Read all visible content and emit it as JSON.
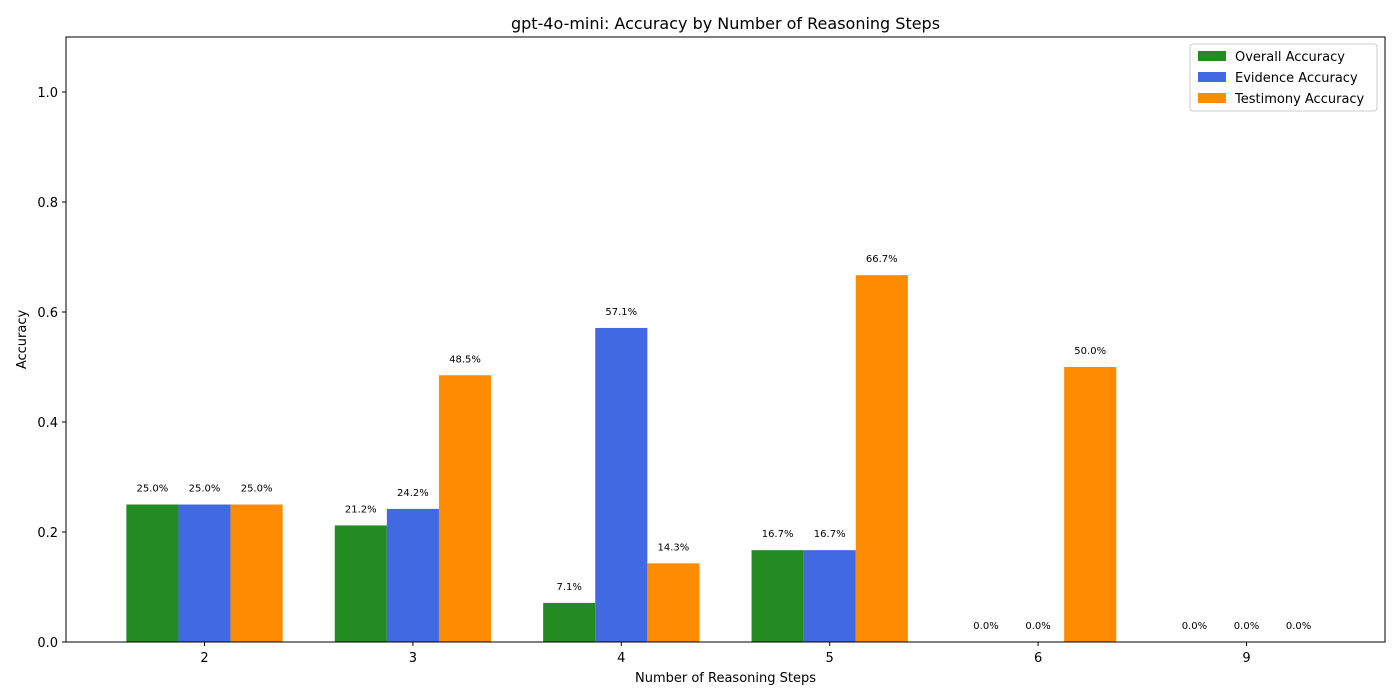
{
  "chart_data": {
    "type": "bar",
    "title": "gpt-4o-mini: Accuracy by Number of Reasoning Steps",
    "xlabel": "Number of Reasoning Steps",
    "ylabel": "Accuracy",
    "categories": [
      "2",
      "3",
      "4",
      "5",
      "6",
      "9"
    ],
    "ylim": [
      0,
      1.1
    ],
    "yticks": [
      0.0,
      0.2,
      0.4,
      0.6,
      0.8,
      1.0
    ],
    "ytick_labels": [
      "0.0",
      "0.2",
      "0.4",
      "0.6",
      "0.8",
      "1.0"
    ],
    "grid": false,
    "legend_position": "top-right",
    "series": [
      {
        "name": "Overall Accuracy",
        "color": "#228B22",
        "values": [
          0.25,
          0.212,
          0.071,
          0.167,
          0.0,
          0.0
        ],
        "labels": [
          "25.0%",
          "21.2%",
          "7.1%",
          "16.7%",
          "0.0%",
          "0.0%"
        ]
      },
      {
        "name": "Evidence Accuracy",
        "color": "#4169E1",
        "values": [
          0.25,
          0.242,
          0.571,
          0.167,
          0.0,
          0.0
        ],
        "labels": [
          "25.0%",
          "24.2%",
          "57.1%",
          "16.7%",
          "0.0%",
          "0.0%"
        ]
      },
      {
        "name": "Testimony Accuracy",
        "color": "#FF8C00",
        "values": [
          0.25,
          0.485,
          0.143,
          0.667,
          0.5,
          0.0
        ],
        "labels": [
          "25.0%",
          "48.5%",
          "14.3%",
          "66.7%",
          "50.0%",
          "0.0%"
        ]
      }
    ]
  }
}
